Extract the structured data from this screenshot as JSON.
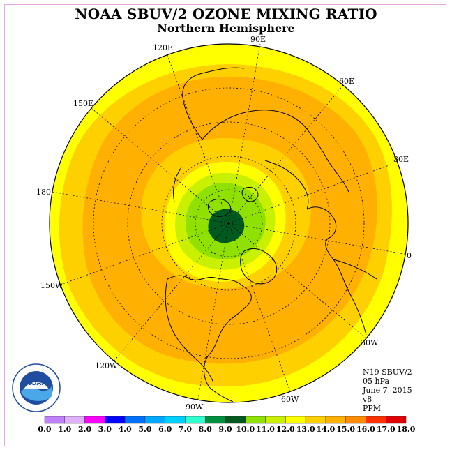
{
  "title": "NOAA SBUV/2 OZONE MIXING RATIO",
  "subtitle": "Northern Hemisphere",
  "longitude_labels": {
    "lon_0": "0",
    "lon_30e": "30E",
    "lon_60e": "60E",
    "lon_90e": "90E",
    "lon_120e": "120E",
    "lon_150e": "150E",
    "lon_180": "180",
    "lon_150w": "150W",
    "lon_120w": "120W",
    "lon_90w": "90W",
    "lon_60w": "60W",
    "lon_30w": "30W"
  },
  "info": {
    "satellite": "N19 SBUV/2",
    "level": "05 hPa",
    "date": "June 7, 2015",
    "version": "v8",
    "units": "PPM"
  },
  "colorbar": {
    "ticks": [
      "0.0",
      "1.0",
      "2.0",
      "3.0",
      "4.0",
      "5.0",
      "6.0",
      "7.0",
      "8.0",
      "9.0",
      "10.0",
      "11.0",
      "12.0",
      "13.0",
      "14.0",
      "15.0",
      "16.0",
      "17.0",
      "18.0"
    ],
    "colors": [
      "#c080ff",
      "#e0b0ff",
      "#ff00ff",
      "#0000ff",
      "#0070ff",
      "#00a8ff",
      "#00d0ff",
      "#30ffd0",
      "#009040",
      "#005a20",
      "#90e000",
      "#c8f000",
      "#ffff00",
      "#ffd000",
      "#ffb000",
      "#ff8c00",
      "#ff3000",
      "#e00000",
      "#8b5030"
    ]
  },
  "field_colors": {
    "level_10": "#005a20",
    "level_11": "#90e000",
    "level_12": "#c8f000",
    "level_13": "#ffff00",
    "level_14": "#ffd000",
    "level_15": "#ffb000"
  },
  "logo": {
    "name": "noaa-logo",
    "text": "NOAA",
    "ring_text": "NATIONAL OCEANIC AND ATMOSPHERIC ADMINISTRATION · U.S. DEPARTMENT OF COMMERCE"
  }
}
